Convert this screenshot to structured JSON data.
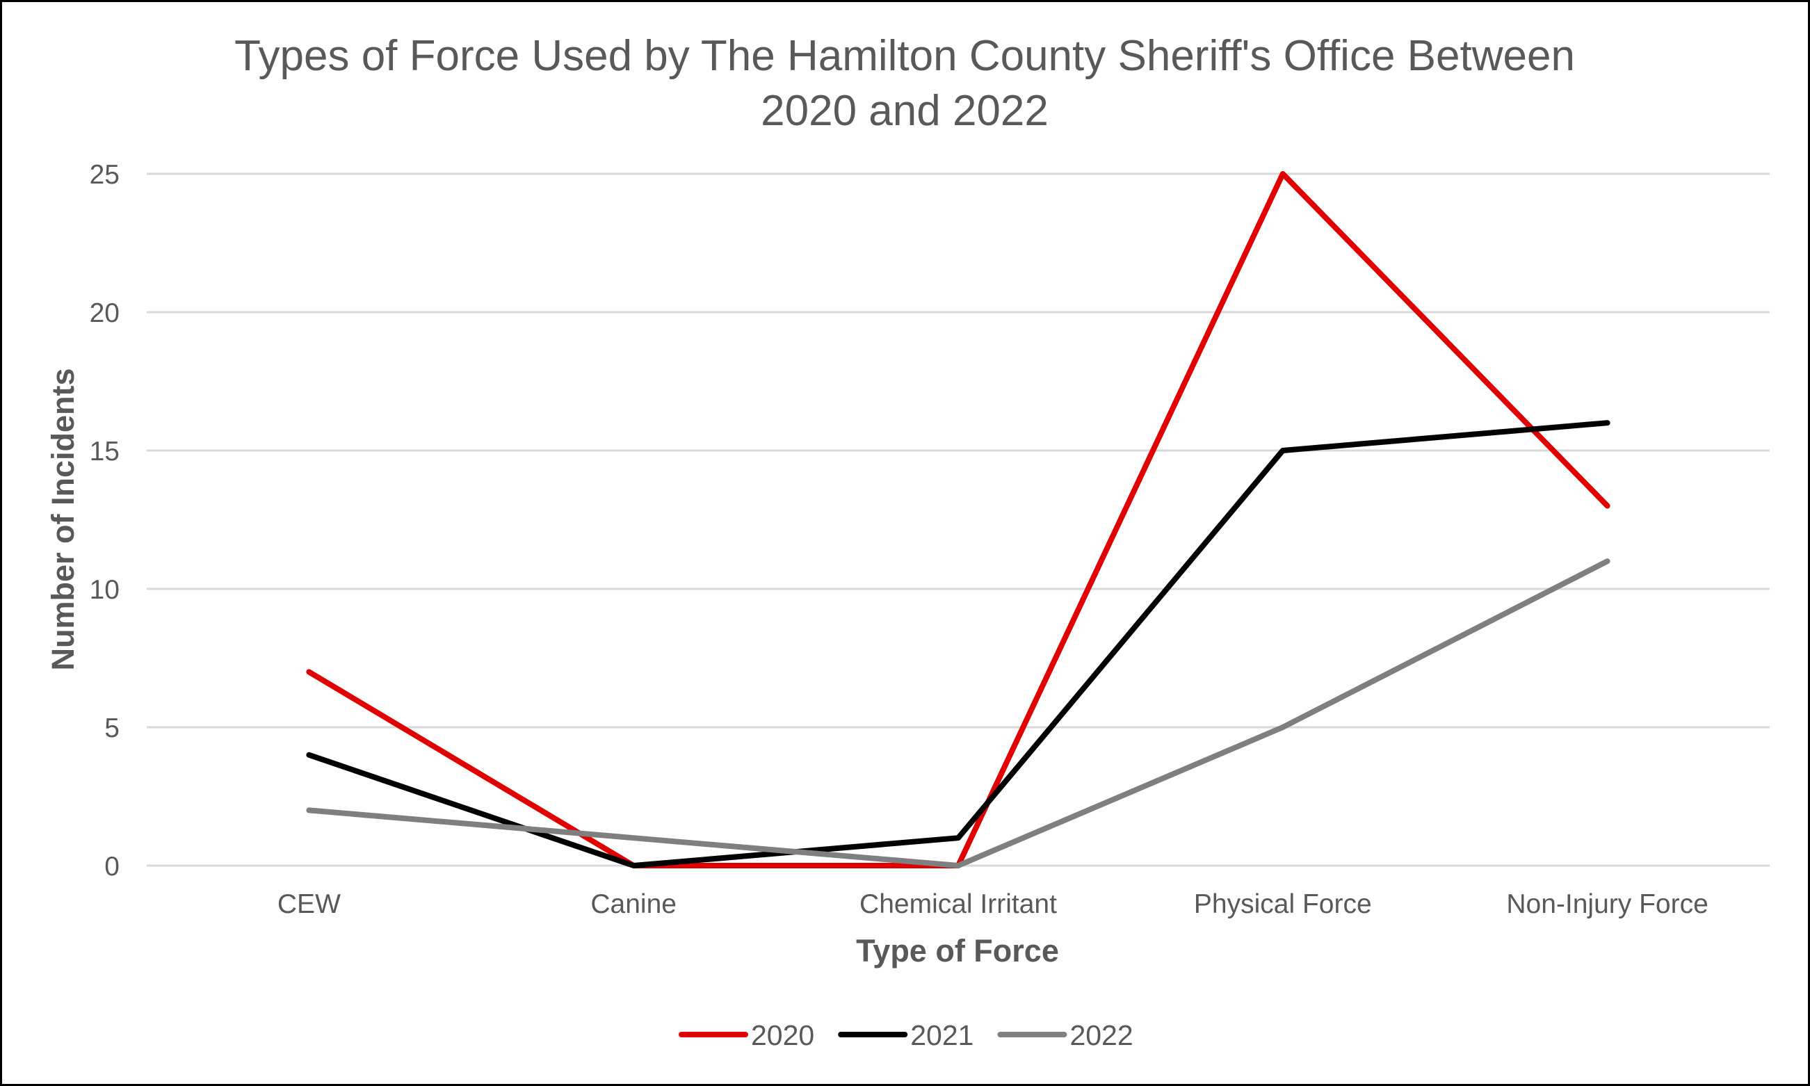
{
  "chart_data": {
    "type": "line",
    "title_lines": [
      "Types of Force Used by The Hamilton County Sheriff's Office Between",
      "2020 and 2022"
    ],
    "xlabel": "Type of Force",
    "ylabel": "Number of Incidents",
    "categories": [
      "CEW",
      "Canine",
      "Chemical Irritant",
      "Physical Force",
      "Non-Injury Force"
    ],
    "ylim": [
      0,
      25
    ],
    "yticks": [
      0,
      5,
      10,
      15,
      20,
      25
    ],
    "grid": true,
    "legend_position": "bottom",
    "series": [
      {
        "name": "2020",
        "color": "#e00000",
        "values": [
          7,
          0,
          0,
          25,
          13
        ]
      },
      {
        "name": "2021",
        "color": "#000000",
        "values": [
          4,
          0,
          1,
          15,
          16
        ]
      },
      {
        "name": "2022",
        "color": "#7f7f7f",
        "values": [
          2,
          1,
          0,
          5,
          11
        ]
      }
    ]
  }
}
